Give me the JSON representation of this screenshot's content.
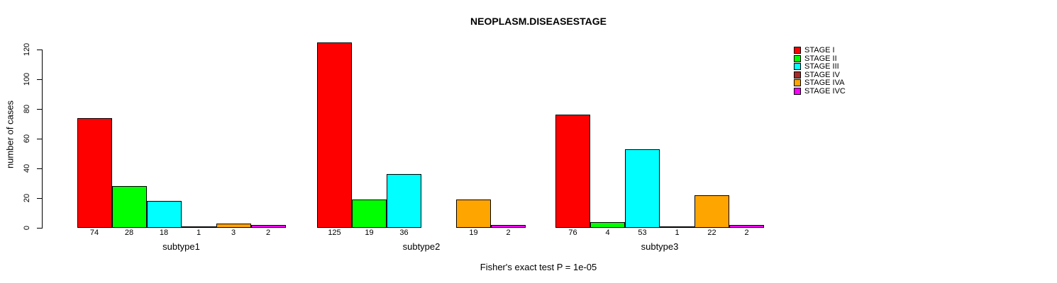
{
  "chart_data": {
    "type": "bar",
    "title": "NEOPLASM.DISEASESTAGE",
    "xlabel": "",
    "ylabel": "number of cases",
    "ylim": [
      0,
      125
    ],
    "yticks": [
      0,
      20,
      40,
      60,
      80,
      100,
      120
    ],
    "grid": false,
    "legend_position": "right",
    "bar_value_labels_shown": true,
    "categories": [
      "subtype1",
      "subtype2",
      "subtype3"
    ],
    "series": [
      {
        "name": "STAGE I",
        "color": "#ff0000",
        "values": [
          74,
          125,
          76
        ]
      },
      {
        "name": "STAGE II",
        "color": "#00ff00",
        "values": [
          28,
          19,
          4
        ]
      },
      {
        "name": "STAGE III",
        "color": "#00ffff",
        "values": [
          18,
          36,
          53
        ]
      },
      {
        "name": "STAGE IV",
        "color": "#a52a2a",
        "values": [
          1,
          0,
          1
        ]
      },
      {
        "name": "STAGE IVA",
        "color": "#ffa500",
        "values": [
          3,
          19,
          22
        ]
      },
      {
        "name": "STAGE IVC",
        "color": "#ff00ff",
        "values": [
          2,
          2,
          2
        ]
      }
    ],
    "annotation": "Fisher's exact test P = 1e-05"
  },
  "colors": {
    "background": "#ffffff",
    "text": "#000000",
    "axis": "#000000"
  }
}
